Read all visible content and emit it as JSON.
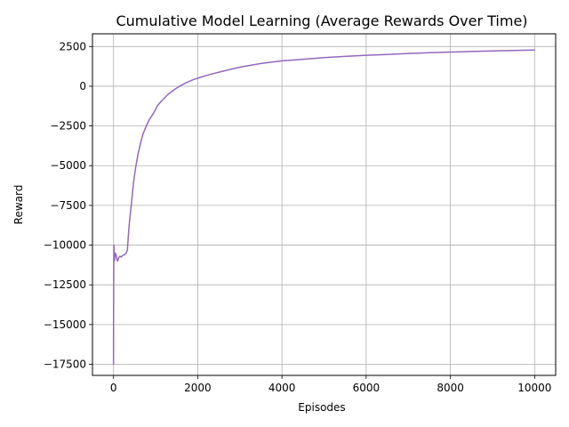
{
  "chart_data": {
    "type": "line",
    "title": "Cumulative Model Learning (Average Rewards Over Time)",
    "xlabel": "Episodes",
    "ylabel": "Reward",
    "xlim": [
      -500,
      10500
    ],
    "ylim": [
      -18200,
      3300
    ],
    "xticks": [
      0,
      2000,
      4000,
      6000,
      8000,
      10000
    ],
    "xtick_labels": [
      "0",
      "2000",
      "4000",
      "6000",
      "8000",
      "10000"
    ],
    "yticks": [
      2500,
      0,
      -2500,
      -5000,
      -7500,
      -10000,
      -12500,
      -15000,
      -17500
    ],
    "ytick_labels": [
      "2500",
      "0",
      "−2500",
      "−5000",
      "−7500",
      "−10000",
      "−12500",
      "−15000",
      "−17500"
    ],
    "grid": true,
    "line_color": "#9467bd",
    "series": [
      {
        "x": [
          0,
          1,
          3,
          5,
          10,
          20,
          40,
          60,
          80,
          100,
          120,
          150,
          180,
          220,
          260,
          300,
          330,
          350,
          380,
          420,
          470,
          520,
          580,
          640,
          700,
          780,
          850,
          950,
          1050,
          1150,
          1300,
          1450,
          1600,
          1750,
          1900,
          2050,
          2300,
          2600,
          3000,
          3500,
          4000,
          4500,
          5000,
          5500,
          6000,
          6500,
          7000,
          7500,
          8000,
          8500,
          9000,
          9500,
          10000
        ],
        "values": [
          -17500,
          -15000,
          -13000,
          -11500,
          -10000,
          -11000,
          -10500,
          -10600,
          -10900,
          -11000,
          -10800,
          -10700,
          -10750,
          -10650,
          -10600,
          -10500,
          -10300,
          -9500,
          -8500,
          -7500,
          -6200,
          -5200,
          -4300,
          -3600,
          -3000,
          -2500,
          -2100,
          -1700,
          -1200,
          -900,
          -500,
          -200,
          50,
          250,
          420,
          550,
          750,
          950,
          1200,
          1430,
          1600,
          1700,
          1800,
          1880,
          1950,
          2000,
          2060,
          2110,
          2150,
          2190,
          2220,
          2250,
          2280
        ]
      }
    ]
  }
}
